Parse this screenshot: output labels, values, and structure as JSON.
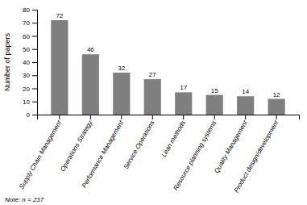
{
  "chart_data": {
    "type": "bar",
    "categories": [
      "Supply Chain Management",
      "Operations Strategy",
      "Performance Management",
      "Service Operations",
      "Lean methods",
      "Resource planning systems",
      "Quality Management",
      "Product design/development"
    ],
    "values": [
      72,
      46,
      32,
      27,
      17,
      15,
      14,
      12
    ],
    "color": "#7f7f7f",
    "ylabel": "Number of papers",
    "ylim": [
      0,
      80
    ],
    "yticks": [
      0,
      10,
      20,
      30,
      40,
      50,
      60,
      70,
      80
    ],
    "annotations": [
      "Note: n = 237"
    ],
    "data_labels": true,
    "grid": false
  }
}
